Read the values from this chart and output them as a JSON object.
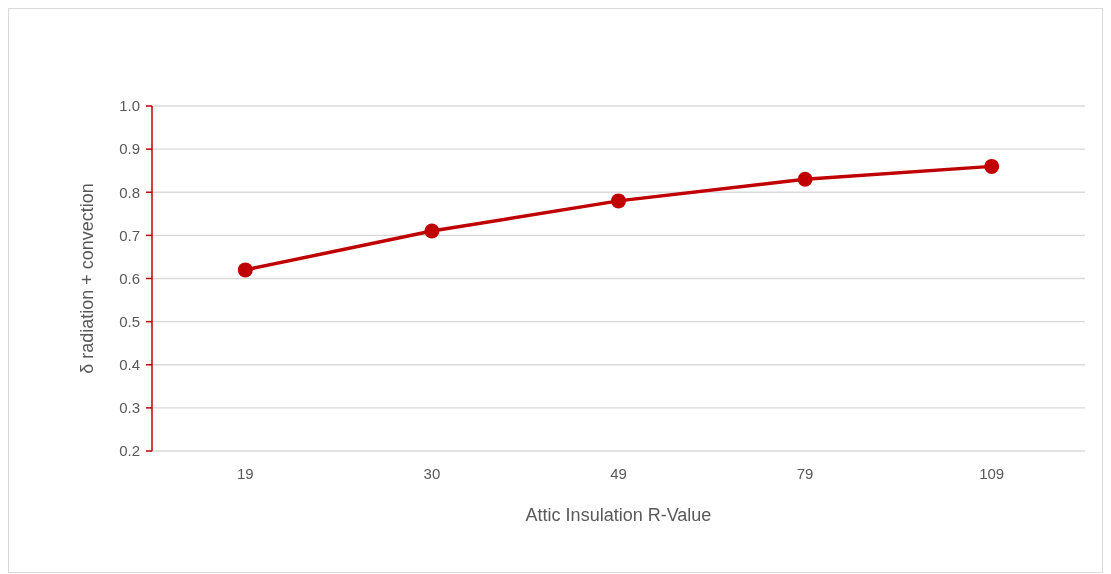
{
  "chart_data": {
    "type": "line",
    "xlabel": "Attic Insulation R-Value",
    "ylabel": "δ radiation + convection",
    "categories": [
      "19",
      "30",
      "49",
      "79",
      "109"
    ],
    "series": [
      {
        "color": "#c00000",
        "values": [
          0.62,
          0.71,
          0.78,
          0.83,
          0.86
        ]
      }
    ],
    "ylim": [
      0.2,
      1.0
    ],
    "yticks": [
      {
        "value": 0.2,
        "label": "0.2"
      },
      {
        "value": 0.3,
        "label": "0.3"
      },
      {
        "value": 0.4,
        "label": "0.4"
      },
      {
        "value": 0.5,
        "label": "0.5"
      },
      {
        "value": 0.6,
        "label": "0.6"
      },
      {
        "value": 0.7,
        "label": "0.7"
      },
      {
        "value": 0.8,
        "label": "0.8"
      },
      {
        "value": 0.9,
        "label": "0.9"
      },
      {
        "value": 1.0,
        "label": "1.0"
      }
    ],
    "grid": "y",
    "marker": "circle",
    "line_style": "solid"
  }
}
